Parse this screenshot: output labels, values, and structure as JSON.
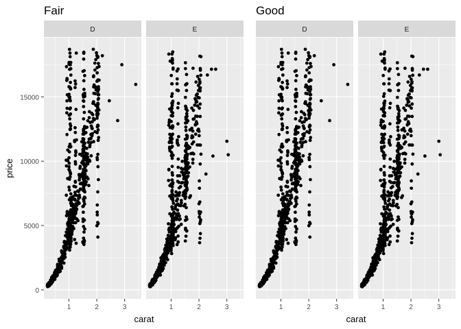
{
  "chart_data": {
    "type": "scatter",
    "x_label": "carat",
    "y_label": "price",
    "x_ticks": [
      1,
      2,
      3
    ],
    "y_ticks": [
      0,
      5000,
      10000,
      15000
    ],
    "xlim": [
      0.1,
      3.6
    ],
    "ylim": [
      -700,
      19600
    ],
    "colors": {
      "panel_bg": "#ebebeb",
      "grid": "#ffffff",
      "strip_bg": "#d9d9d9",
      "point": "#000000",
      "tick_text": "#4d4d4d"
    },
    "plots": [
      {
        "title": "Fair",
        "facets": [
          {
            "strip": "D",
            "outliers": [
              [
                3.4,
                15964
              ],
              [
                2.75,
                13156
              ],
              [
                2.45,
                14700
              ],
              [
                2.9,
                17500
              ],
              [
                2.2,
                18200
              ]
            ],
            "max_x": 2.1
          },
          {
            "strip": "E",
            "outliers": [
              [
                3.0,
                11548
              ],
              [
                3.05,
                10500
              ],
              [
                2.5,
                10400
              ],
              [
                2.25,
                9000
              ],
              [
                2.45,
                17150
              ],
              [
                2.6,
                17150
              ],
              [
                2.3,
                16700
              ]
            ],
            "max_x": 2.05
          }
        ]
      },
      {
        "title": "Good",
        "facets": [
          {
            "strip": "D",
            "outliers": [
              [
                3.4,
                15964
              ],
              [
                2.75,
                13156
              ],
              [
                2.45,
                14700
              ],
              [
                2.9,
                17500
              ],
              [
                2.2,
                18200
              ]
            ],
            "max_x": 2.1
          },
          {
            "strip": "E",
            "outliers": [
              [
                3.0,
                11548
              ],
              [
                3.05,
                10500
              ],
              [
                2.5,
                10400
              ],
              [
                2.25,
                9000
              ],
              [
                2.45,
                17150
              ],
              [
                2.6,
                17150
              ],
              [
                2.3,
                16700
              ]
            ],
            "max_x": 2.05
          }
        ]
      }
    ]
  }
}
